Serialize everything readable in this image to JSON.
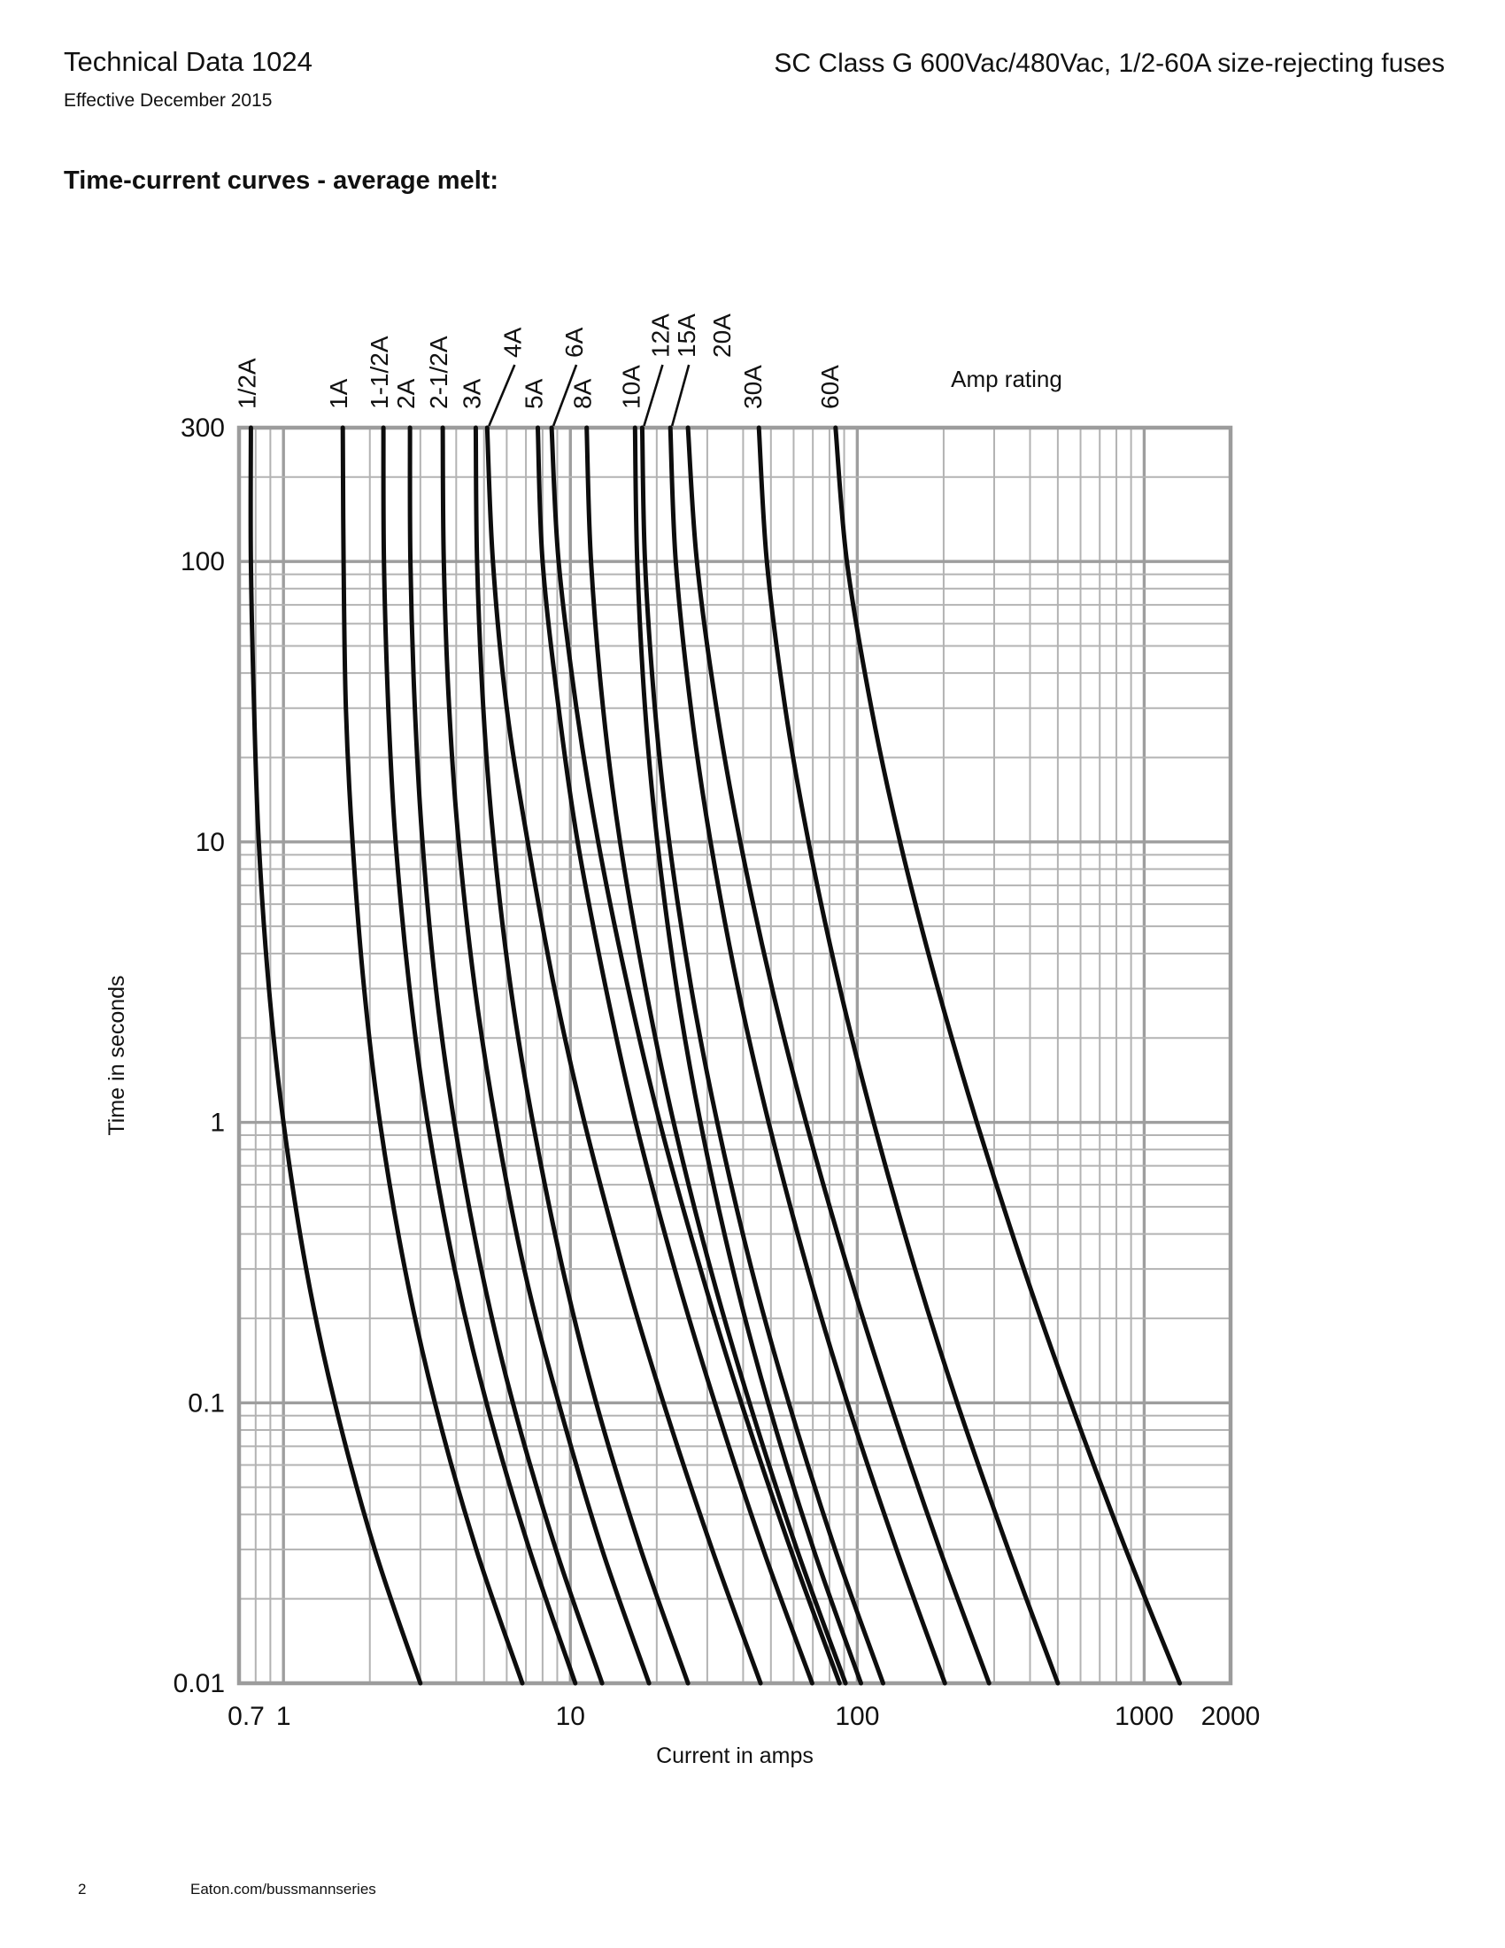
{
  "header": {
    "title": "Technical Data 1024",
    "subtitle": "Effective December 2015",
    "product": "SC Class G 600Vac/480Vac, 1/2-60A size-rejecting fuses"
  },
  "section_title": "Time-current curves - average melt:",
  "footer": {
    "page_number": "2",
    "website": "Eaton.com/bussmannseries"
  },
  "chart_data": {
    "type": "line",
    "title": "Time-current curves - average melt",
    "xlabel": "Current in amps",
    "ylabel": "Time in seconds",
    "legend_label": "Amp rating",
    "x_scale": "log",
    "y_scale": "log",
    "xlim": [
      0.7,
      2000
    ],
    "ylim": [
      0.01,
      300
    ],
    "grid": "log minor and major gridlines, gray, full frame",
    "x_ticks": [
      {
        "v": 0.7,
        "label": "0.7",
        "dx": 8
      },
      {
        "v": 1,
        "label": "1",
        "dx": 0
      },
      {
        "v": 10,
        "label": "10",
        "dx": 0
      },
      {
        "v": 100,
        "label": "100",
        "dx": 0
      },
      {
        "v": 1000,
        "label": "1000",
        "dx": 0
      },
      {
        "v": 2000,
        "label": "2000",
        "dx": 0
      }
    ],
    "y_ticks": [
      {
        "v": 300,
        "label": "300"
      },
      {
        "v": 100,
        "label": "100"
      },
      {
        "v": 10,
        "label": "10"
      },
      {
        "v": 1,
        "label": "1"
      },
      {
        "v": 0.1,
        "label": "0.1"
      },
      {
        "v": 0.01,
        "label": "0.01"
      }
    ],
    "colors": {
      "curve": "#0d0d0d",
      "grid_minor": "#b3b3b3",
      "grid_major": "#9e9e9e",
      "frame": "#9c9c9c",
      "text": "#111111"
    },
    "series": [
      {
        "label": "1/2A",
        "leader": false,
        "raised": false,
        "label_dx": -6,
        "points": [
          [
            300,
            0.77
          ],
          [
            100,
            0.77
          ],
          [
            30,
            0.79
          ],
          [
            10,
            0.82
          ],
          [
            3,
            0.89
          ],
          [
            1,
            1.0
          ],
          [
            0.3,
            1.2
          ],
          [
            0.1,
            1.51
          ],
          [
            0.03,
            2.08
          ],
          [
            0.01,
            3.0
          ]
        ]
      },
      {
        "label": "1A",
        "leader": false,
        "raised": false,
        "label_dx": -6,
        "points": [
          [
            300,
            1.61
          ],
          [
            100,
            1.62
          ],
          [
            30,
            1.65
          ],
          [
            10,
            1.74
          ],
          [
            3,
            1.91
          ],
          [
            1,
            2.17
          ],
          [
            0.3,
            2.65
          ],
          [
            0.1,
            3.37
          ],
          [
            0.03,
            4.7
          ],
          [
            0.01,
            6.8
          ]
        ]
      },
      {
        "label": "1-1/2A",
        "leader": false,
        "raised": false,
        "label_dx": -6,
        "points": [
          [
            300,
            2.23
          ],
          [
            100,
            2.24
          ],
          [
            30,
            2.32
          ],
          [
            10,
            2.46
          ],
          [
            3,
            2.75
          ],
          [
            1,
            3.18
          ],
          [
            0.3,
            3.95
          ],
          [
            0.1,
            5.1
          ],
          [
            0.03,
            7.2
          ],
          [
            0.01,
            10.4
          ]
        ]
      },
      {
        "label": "2A",
        "leader": false,
        "raised": false,
        "label_dx": -6,
        "points": [
          [
            300,
            2.76
          ],
          [
            100,
            2.77
          ],
          [
            30,
            2.87
          ],
          [
            10,
            3.05
          ],
          [
            3,
            3.4
          ],
          [
            1,
            3.94
          ],
          [
            0.3,
            4.89
          ],
          [
            0.1,
            6.3
          ],
          [
            0.03,
            8.9
          ],
          [
            0.01,
            12.9
          ]
        ]
      },
      {
        "label": "2-1/2A",
        "leader": false,
        "raised": false,
        "label_dx": -6,
        "points": [
          [
            300,
            3.59
          ],
          [
            100,
            3.62
          ],
          [
            30,
            3.78
          ],
          [
            10,
            4.08
          ],
          [
            3,
            4.65
          ],
          [
            1,
            5.49
          ],
          [
            0.3,
            6.9
          ],
          [
            0.1,
            9.1
          ],
          [
            0.03,
            12.9
          ],
          [
            0.01,
            18.8
          ]
        ]
      },
      {
        "label": "3A",
        "leader": false,
        "raised": false,
        "label_dx": -6,
        "points": [
          [
            300,
            4.68
          ],
          [
            100,
            4.73
          ],
          [
            30,
            4.97
          ],
          [
            10,
            5.4
          ],
          [
            3,
            6.2
          ],
          [
            1,
            7.4
          ],
          [
            0.3,
            9.4
          ],
          [
            0.1,
            12.3
          ],
          [
            0.03,
            17.6
          ],
          [
            0.01,
            25.7
          ]
        ]
      },
      {
        "label": "4A",
        "leader": true,
        "raised": true,
        "label_dx": 27,
        "points": [
          [
            300,
            5.13
          ],
          [
            100,
            5.37
          ],
          [
            30,
            6.0
          ],
          [
            10,
            7.1
          ],
          [
            3,
            8.8
          ],
          [
            1,
            11.2
          ],
          [
            0.3,
            15.3
          ],
          [
            0.1,
            21.1
          ],
          [
            0.03,
            31.2
          ],
          [
            0.01,
            46
          ]
        ]
      },
      {
        "label": "5A",
        "leader": false,
        "raised": false,
        "label_dx": -6,
        "points": [
          [
            300,
            7.7
          ],
          [
            100,
            8.0
          ],
          [
            30,
            9.1
          ],
          [
            10,
            10.6
          ],
          [
            3,
            13.3
          ],
          [
            1,
            16.9
          ],
          [
            0.3,
            23.1
          ],
          [
            0.1,
            31.9
          ],
          [
            0.03,
            47
          ],
          [
            0.01,
            69.6
          ]
        ]
      },
      {
        "label": "6A",
        "leader": true,
        "raised": true,
        "label_dx": 24,
        "points": [
          [
            300,
            8.6
          ],
          [
            100,
            9.1
          ],
          [
            30,
            10.5
          ],
          [
            10,
            12.5
          ],
          [
            3,
            15.9
          ],
          [
            1,
            20.5
          ],
          [
            0.3,
            28.4
          ],
          [
            0.1,
            39.4
          ],
          [
            0.03,
            58.6
          ],
          [
            0.01,
            86.7
          ]
        ]
      },
      {
        "label": "8A",
        "leader": false,
        "raised": false,
        "label_dx": -6,
        "points": [
          [
            300,
            11.4
          ],
          [
            100,
            11.8
          ],
          [
            30,
            13.0
          ],
          [
            10,
            14.9
          ],
          [
            3,
            18.3
          ],
          [
            1,
            22.9
          ],
          [
            0.3,
            30.8
          ],
          [
            0.1,
            42.1
          ],
          [
            0.03,
            61.6
          ],
          [
            0.01,
            91
          ]
        ]
      },
      {
        "label": "10A",
        "leader": false,
        "raised": false,
        "label_dx": -6,
        "points": [
          [
            300,
            16.8
          ],
          [
            100,
            17.1
          ],
          [
            30,
            18.2
          ],
          [
            10,
            20.1
          ],
          [
            3,
            23.5
          ],
          [
            1,
            28.4
          ],
          [
            0.3,
            36.8
          ],
          [
            0.1,
            48.9
          ],
          [
            0.03,
            70.4
          ],
          [
            0.01,
            103
          ]
        ]
      },
      {
        "label": "12A",
        "leader": true,
        "raised": true,
        "label_dx": 19,
        "points": [
          [
            300,
            17.8
          ],
          [
            100,
            18.2
          ],
          [
            30,
            19.7
          ],
          [
            10,
            22.1
          ],
          [
            3,
            26.4
          ],
          [
            1,
            32.5
          ],
          [
            0.3,
            42.8
          ],
          [
            0.1,
            57.7
          ],
          [
            0.03,
            83.7
          ],
          [
            0.01,
            123
          ]
        ]
      },
      {
        "label": "15A",
        "leader": true,
        "raised": true,
        "label_dx": 17,
        "points": [
          [
            300,
            22.3
          ],
          [
            100,
            23.3
          ],
          [
            30,
            26.3
          ],
          [
            10,
            30.8
          ],
          [
            3,
            38.4
          ],
          [
            1,
            49.1
          ],
          [
            0.3,
            67
          ],
          [
            0.1,
            92.4
          ],
          [
            0.03,
            137
          ],
          [
            0.01,
            202
          ]
        ]
      },
      {
        "label": "20A",
        "leader": false,
        "raised": true,
        "label_dx": 37,
        "points": [
          [
            300,
            25.7
          ],
          [
            100,
            27.6
          ],
          [
            30,
            32.3
          ],
          [
            10,
            39.1
          ],
          [
            3,
            50.5
          ],
          [
            1,
            66.3
          ],
          [
            0.3,
            92.8
          ],
          [
            0.1,
            130
          ],
          [
            0.03,
            194
          ],
          [
            0.01,
            288
          ]
        ]
      },
      {
        "label": "30A",
        "leader": false,
        "raised": false,
        "label_dx": -8,
        "points": [
          [
            300,
            45.4
          ],
          [
            100,
            48.4
          ],
          [
            30,
            56.1
          ],
          [
            10,
            67.6
          ],
          [
            3,
            87
          ],
          [
            1,
            114
          ],
          [
            0.3,
            159
          ],
          [
            0.1,
            223
          ],
          [
            0.03,
            336
          ],
          [
            0.01,
            500
          ]
        ]
      },
      {
        "label": "60A",
        "leader": false,
        "raised": false,
        "label_dx": -8,
        "points": [
          [
            300,
            84
          ],
          [
            100,
            92
          ],
          [
            30,
            112
          ],
          [
            10,
            141
          ],
          [
            3,
            191
          ],
          [
            1,
            261
          ],
          [
            0.3,
            381
          ],
          [
            0.1,
            555
          ],
          [
            0.03,
            863
          ],
          [
            0.01,
            1330
          ]
        ]
      }
    ]
  }
}
